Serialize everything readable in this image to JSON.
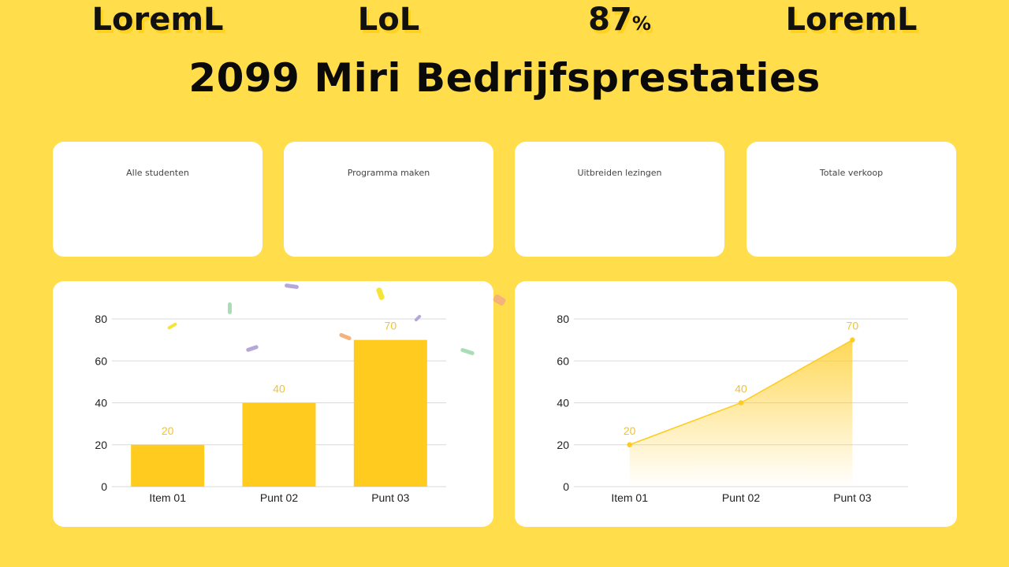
{
  "title": "2099 Miri Bedrijfsprestaties",
  "kpis": [
    {
      "label": "Alle studenten",
      "value": "LoremL",
      "unit": ""
    },
    {
      "label": "Programma maken",
      "value": "LoL",
      "unit": ""
    },
    {
      "label": "Uitbreiden lezingen",
      "value": "87",
      "unit": "%"
    },
    {
      "label": "Totale verkoop",
      "value": "LoremL",
      "unit": ""
    }
  ],
  "colors": {
    "background": "#FFDD4B",
    "accent": "#FFCB1F",
    "label": "#F2C230"
  },
  "chart_data": [
    {
      "type": "bar",
      "categories": [
        "Item 01",
        "Punt 02",
        "Punt 03"
      ],
      "values": [
        20,
        40,
        70
      ],
      "ylim": [
        0,
        80
      ],
      "yticks": [
        0,
        20,
        40,
        60,
        80
      ],
      "grid": true
    },
    {
      "type": "area",
      "categories": [
        "Item 01",
        "Punt 02",
        "Punt 03"
      ],
      "values": [
        20,
        40,
        70
      ],
      "ylim": [
        0,
        80
      ],
      "yticks": [
        0,
        20,
        40,
        60,
        80
      ],
      "grid": true
    }
  ]
}
